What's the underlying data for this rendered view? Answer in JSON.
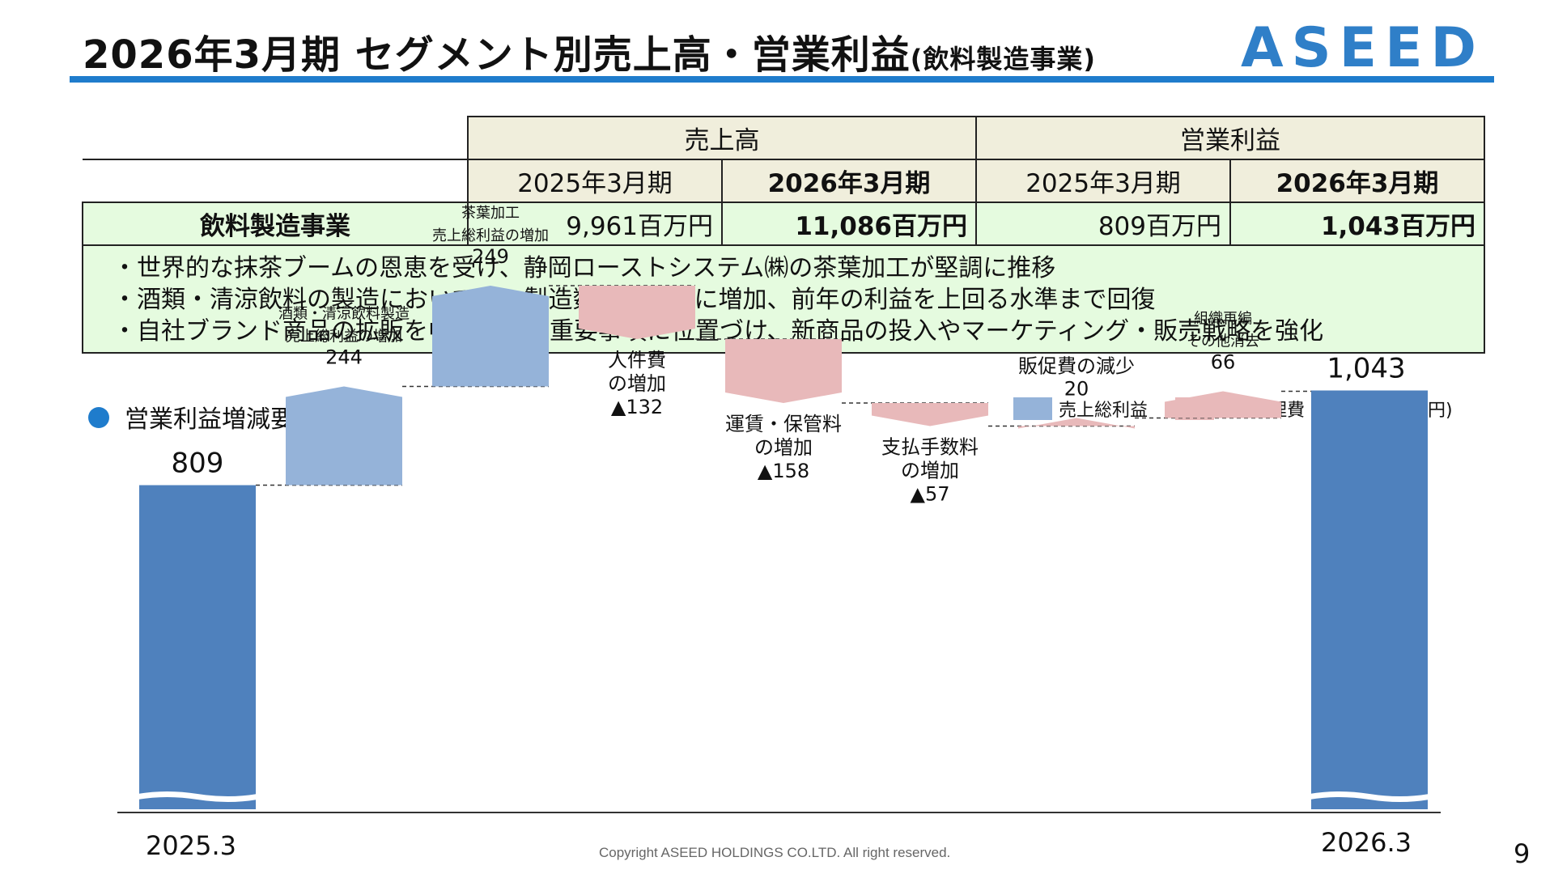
{
  "header": {
    "title": "2026年3月期 セグメント別売上高・営業利益",
    "subtitle": "(飲料製造事業)",
    "logo_text": "ASEED"
  },
  "colors": {
    "brand_blue": "#1f7ccc",
    "gross_profit": "#95b3d9",
    "sga": "#e8b9ba",
    "total_bar": "#4f81bd",
    "table_header": "#f0eedc",
    "table_green": "#e5fbdf"
  },
  "table": {
    "groups": [
      "売上高",
      "営業利益"
    ],
    "periods": [
      "2025年3月期",
      "2026年3月期",
      "2025年3月期",
      "2026年3月期"
    ],
    "row": {
      "segment": "飲料製造事業",
      "values": [
        "9,961百万円",
        "11,086百万円",
        "809百万円",
        "1,043百万円"
      ]
    },
    "notes": [
      "・世界的な抹茶ブームの恩恵を受け、静岡ローストシステム㈱の茶葉加工が堅調に推移",
      "・酒類・清涼飲料の製造においては、製造数量が徐々に増加、前年の利益を上回る水準まで回復",
      "・自社ブランド商品の拡販を中長期の最重要事項に位置づけ、新商品の投入やマーケティング・販売戦略を強化"
    ]
  },
  "chart_section": {
    "bullet_title": "営業利益増減要因",
    "legend": [
      "売上総利益",
      "販売管理費"
    ],
    "unit": "(単位:百万円)"
  },
  "chart_data": {
    "type": "bar",
    "title": "営業利益増減要因",
    "unit": "百万円",
    "ylim": [
      0,
      1120
    ],
    "start": {
      "label": "2025.3",
      "value": 809
    },
    "end": {
      "label": "2026.3",
      "value": 1043,
      "value_label": "1,043"
    },
    "steps": [
      {
        "lines": [
          "酒類・清涼飲料製造",
          "売上総利益の増加"
        ],
        "value": 244,
        "value_label": "244",
        "category": "売上総利益"
      },
      {
        "lines": [
          "茶葉加工",
          "売上総利益の増加"
        ],
        "value": 249,
        "value_label": "249",
        "category": "売上総利益"
      },
      {
        "lines": [
          "人件費",
          "の増加"
        ],
        "value": -132,
        "value_label": "▲132",
        "category": "販売管理費"
      },
      {
        "lines": [
          "運賃・保管料",
          "の増加"
        ],
        "value": -158,
        "value_label": "▲158",
        "category": "販売管理費"
      },
      {
        "lines": [
          "支払手数料",
          "の増加"
        ],
        "value": -57,
        "value_label": "▲57",
        "category": "販売管理費"
      },
      {
        "lines": [
          "販促費の減少"
        ],
        "value": 20,
        "value_label": "20",
        "category": "販売管理費"
      },
      {
        "lines": [
          "組織再編",
          "その他消去"
        ],
        "value": 66,
        "value_label": "66",
        "category": "販売管理費"
      }
    ]
  },
  "footer": {
    "copyright": "Copyright ASEED HOLDINGS CO.LTD. All right reserved.",
    "page_number": "9"
  }
}
